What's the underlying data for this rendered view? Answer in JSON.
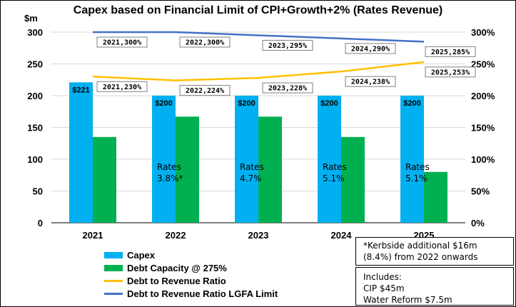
{
  "chart_data": {
    "type": "bar",
    "title": "Capex based on Financial Limit of CPI+Growth+2% (Rates Revenue)",
    "ylabel_left": "$m",
    "categories": [
      "2021",
      "2022",
      "2023",
      "2024",
      "2025"
    ],
    "ylim_left": [
      0,
      300
    ],
    "yticks_left": [
      0,
      50,
      100,
      150,
      200,
      250,
      300
    ],
    "ylim_right": [
      0,
      300
    ],
    "yticks_right": [
      "0%",
      "50%",
      "100%",
      "150%",
      "200%",
      "250%",
      "300%"
    ],
    "series": [
      {
        "name": "Capex",
        "kind": "bar",
        "color": "#00B0F0",
        "values": [
          221,
          200,
          200,
          200,
          200
        ],
        "labels": [
          "$221",
          "$200",
          "$200",
          "$200",
          "$200"
        ]
      },
      {
        "name": "Debt Capacity @ 275%",
        "kind": "bar",
        "color": "#00B050",
        "values": [
          135,
          167,
          167,
          135,
          80
        ]
      },
      {
        "name": "Debt to Revenue Ratio",
        "kind": "line",
        "axis": "right",
        "color": "#FFC000",
        "values": [
          230,
          224,
          228,
          238,
          253
        ],
        "labels": [
          "2021,230%",
          "2022,224%",
          "2023,228%",
          "2024,238%",
          "2025,253%"
        ]
      },
      {
        "name": "Debt to Revenue Ratio LGFA Limit",
        "kind": "line",
        "axis": "right",
        "color": "#4472C4",
        "values": [
          300,
          300,
          295,
          290,
          285
        ],
        "labels": [
          "2021,300%",
          "2022,300%",
          "2023,295%",
          "2024,290%",
          "2025,285%"
        ]
      }
    ],
    "rates_annotations": [
      {
        "label": "",
        "value": ""
      },
      {
        "label": "Rates",
        "value": "3.8%*"
      },
      {
        "label": "Rates",
        "value": "4.7%"
      },
      {
        "label": "Rates",
        "value": "5.1%"
      },
      {
        "label": "Rates",
        "value": "5.1%"
      }
    ],
    "grid": true,
    "legend_position": "bottom-left"
  },
  "notes": {
    "kerbside": [
      "*Kerbside additional $16m",
      "(8.4%) from 2022 onwards"
    ],
    "includes": [
      "Includes:",
      "CIP $45m",
      "Water Reform $7.5m"
    ]
  }
}
